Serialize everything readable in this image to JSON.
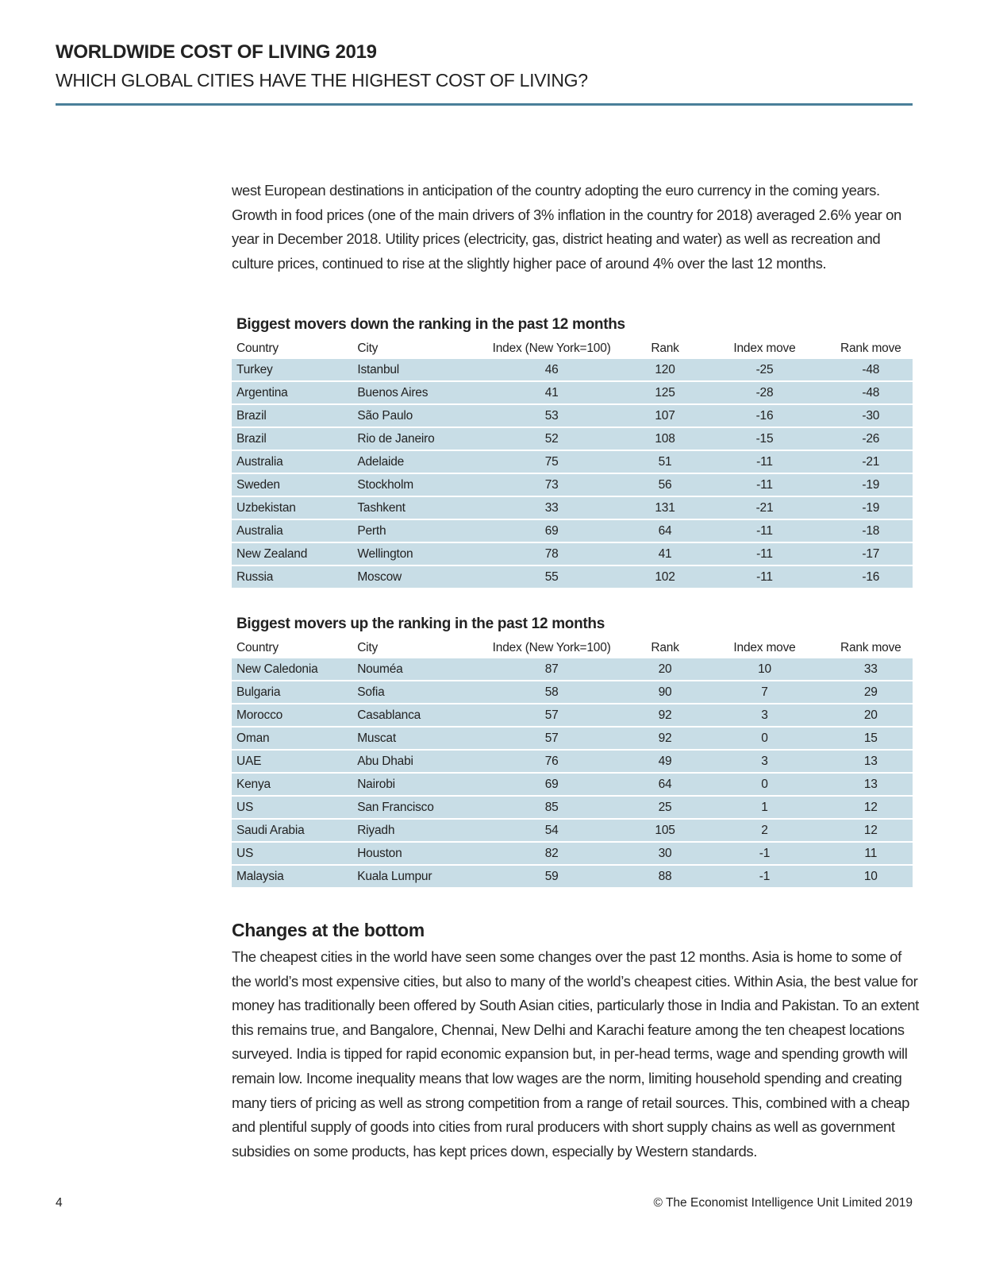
{
  "header": {
    "title": "WORLDWIDE COST OF LIVING 2019",
    "subtitle": "WHICH GLOBAL CITIES HAVE THE HIGHEST COST OF LIVING?",
    "rule_color": "#4a7f99"
  },
  "intro": "west European destinations in anticipation of the country adopting the euro currency in the coming years. Growth in food prices (one of the main drivers of 3% inflation in the country for 2018) averaged 2.6% year on year in December 2018. Utility prices (electricity, gas, district heating and water) as well as recreation and culture prices, continued to rise at the slightly higher pace of around 4% over the last 12 months.",
  "columns": [
    "Country",
    "City",
    "Index (New York=100)",
    "Rank",
    "Index move",
    "Rank move"
  ],
  "tables": [
    {
      "title": "Biggest movers down the ranking in the past 12 months",
      "rows": [
        [
          "Turkey",
          "Istanbul",
          "46",
          "120",
          "-25",
          "-48"
        ],
        [
          "Argentina",
          "Buenos Aires",
          "41",
          "125",
          "-28",
          "-48"
        ],
        [
          "Brazil",
          "São Paulo",
          "53",
          "107",
          "-16",
          "-30"
        ],
        [
          "Brazil",
          "Rio de Janeiro",
          "52",
          "108",
          "-15",
          "-26"
        ],
        [
          "Australia",
          "Adelaide",
          "75",
          "51",
          "-11",
          "-21"
        ],
        [
          "Sweden",
          "Stockholm",
          "73",
          "56",
          "-11",
          "-19"
        ],
        [
          "Uzbekistan",
          "Tashkent",
          "33",
          "131",
          "-21",
          "-19"
        ],
        [
          "Australia",
          "Perth",
          "69",
          "64",
          "-11",
          "-18"
        ],
        [
          "New Zealand",
          "Wellington",
          "78",
          "41",
          "-11",
          "-17"
        ],
        [
          "Russia",
          "Moscow",
          "55",
          "102",
          "-11",
          "-16"
        ]
      ]
    },
    {
      "title": "Biggest movers up the ranking in the past 12 months",
      "rows": [
        [
          "New Caledonia",
          "Nouméa",
          "87",
          "20",
          "10",
          "33"
        ],
        [
          "Bulgaria",
          "Sofia",
          "58",
          "90",
          "7",
          "29"
        ],
        [
          "Morocco",
          "Casablanca",
          "57",
          "92",
          "3",
          "20"
        ],
        [
          "Oman",
          "Muscat",
          "57",
          "92",
          "0",
          "15"
        ],
        [
          "UAE",
          "Abu Dhabi",
          "76",
          "49",
          "3",
          "13"
        ],
        [
          "Kenya",
          "Nairobi",
          "69",
          "64",
          "0",
          "13"
        ],
        [
          "US",
          "San Francisco",
          "85",
          "25",
          "1",
          "12"
        ],
        [
          "Saudi Arabia",
          "Riyadh",
          "54",
          "105",
          "2",
          "12"
        ],
        [
          "US",
          "Houston",
          "82",
          "30",
          "-1",
          "11"
        ],
        [
          "Malaysia",
          "Kuala Lumpur",
          "59",
          "88",
          "-1",
          "10"
        ]
      ]
    }
  ],
  "section": {
    "heading": "Changes at the bottom",
    "body": "The cheapest cities in the world have seen some changes over the past 12 months. Asia is home to some of the world’s most expensive cities, but also to many of the world’s cheapest cities. Within Asia, the best value for money has traditionally been offered by South Asian cities, particularly those in India and Pakistan. To an extent this remains true, and Bangalore, Chennai, New Delhi and Karachi feature among the ten cheapest locations surveyed. India is tipped for rapid economic expansion but, in per-head terms, wage and spending growth will remain low. Income inequality means that low wages are the norm, limiting household spending and creating many tiers of pricing as well as strong competition from a range of retail sources. This, combined with a cheap and plentiful supply of goods into cities from rural producers with short supply chains as well as government subsidies on some products, has kept prices down, especially by Western standards."
  },
  "footer": {
    "page_number": "4",
    "copyright": "© The Economist Intelligence Unit Limited 2019"
  },
  "row_color": "#c8dde6"
}
